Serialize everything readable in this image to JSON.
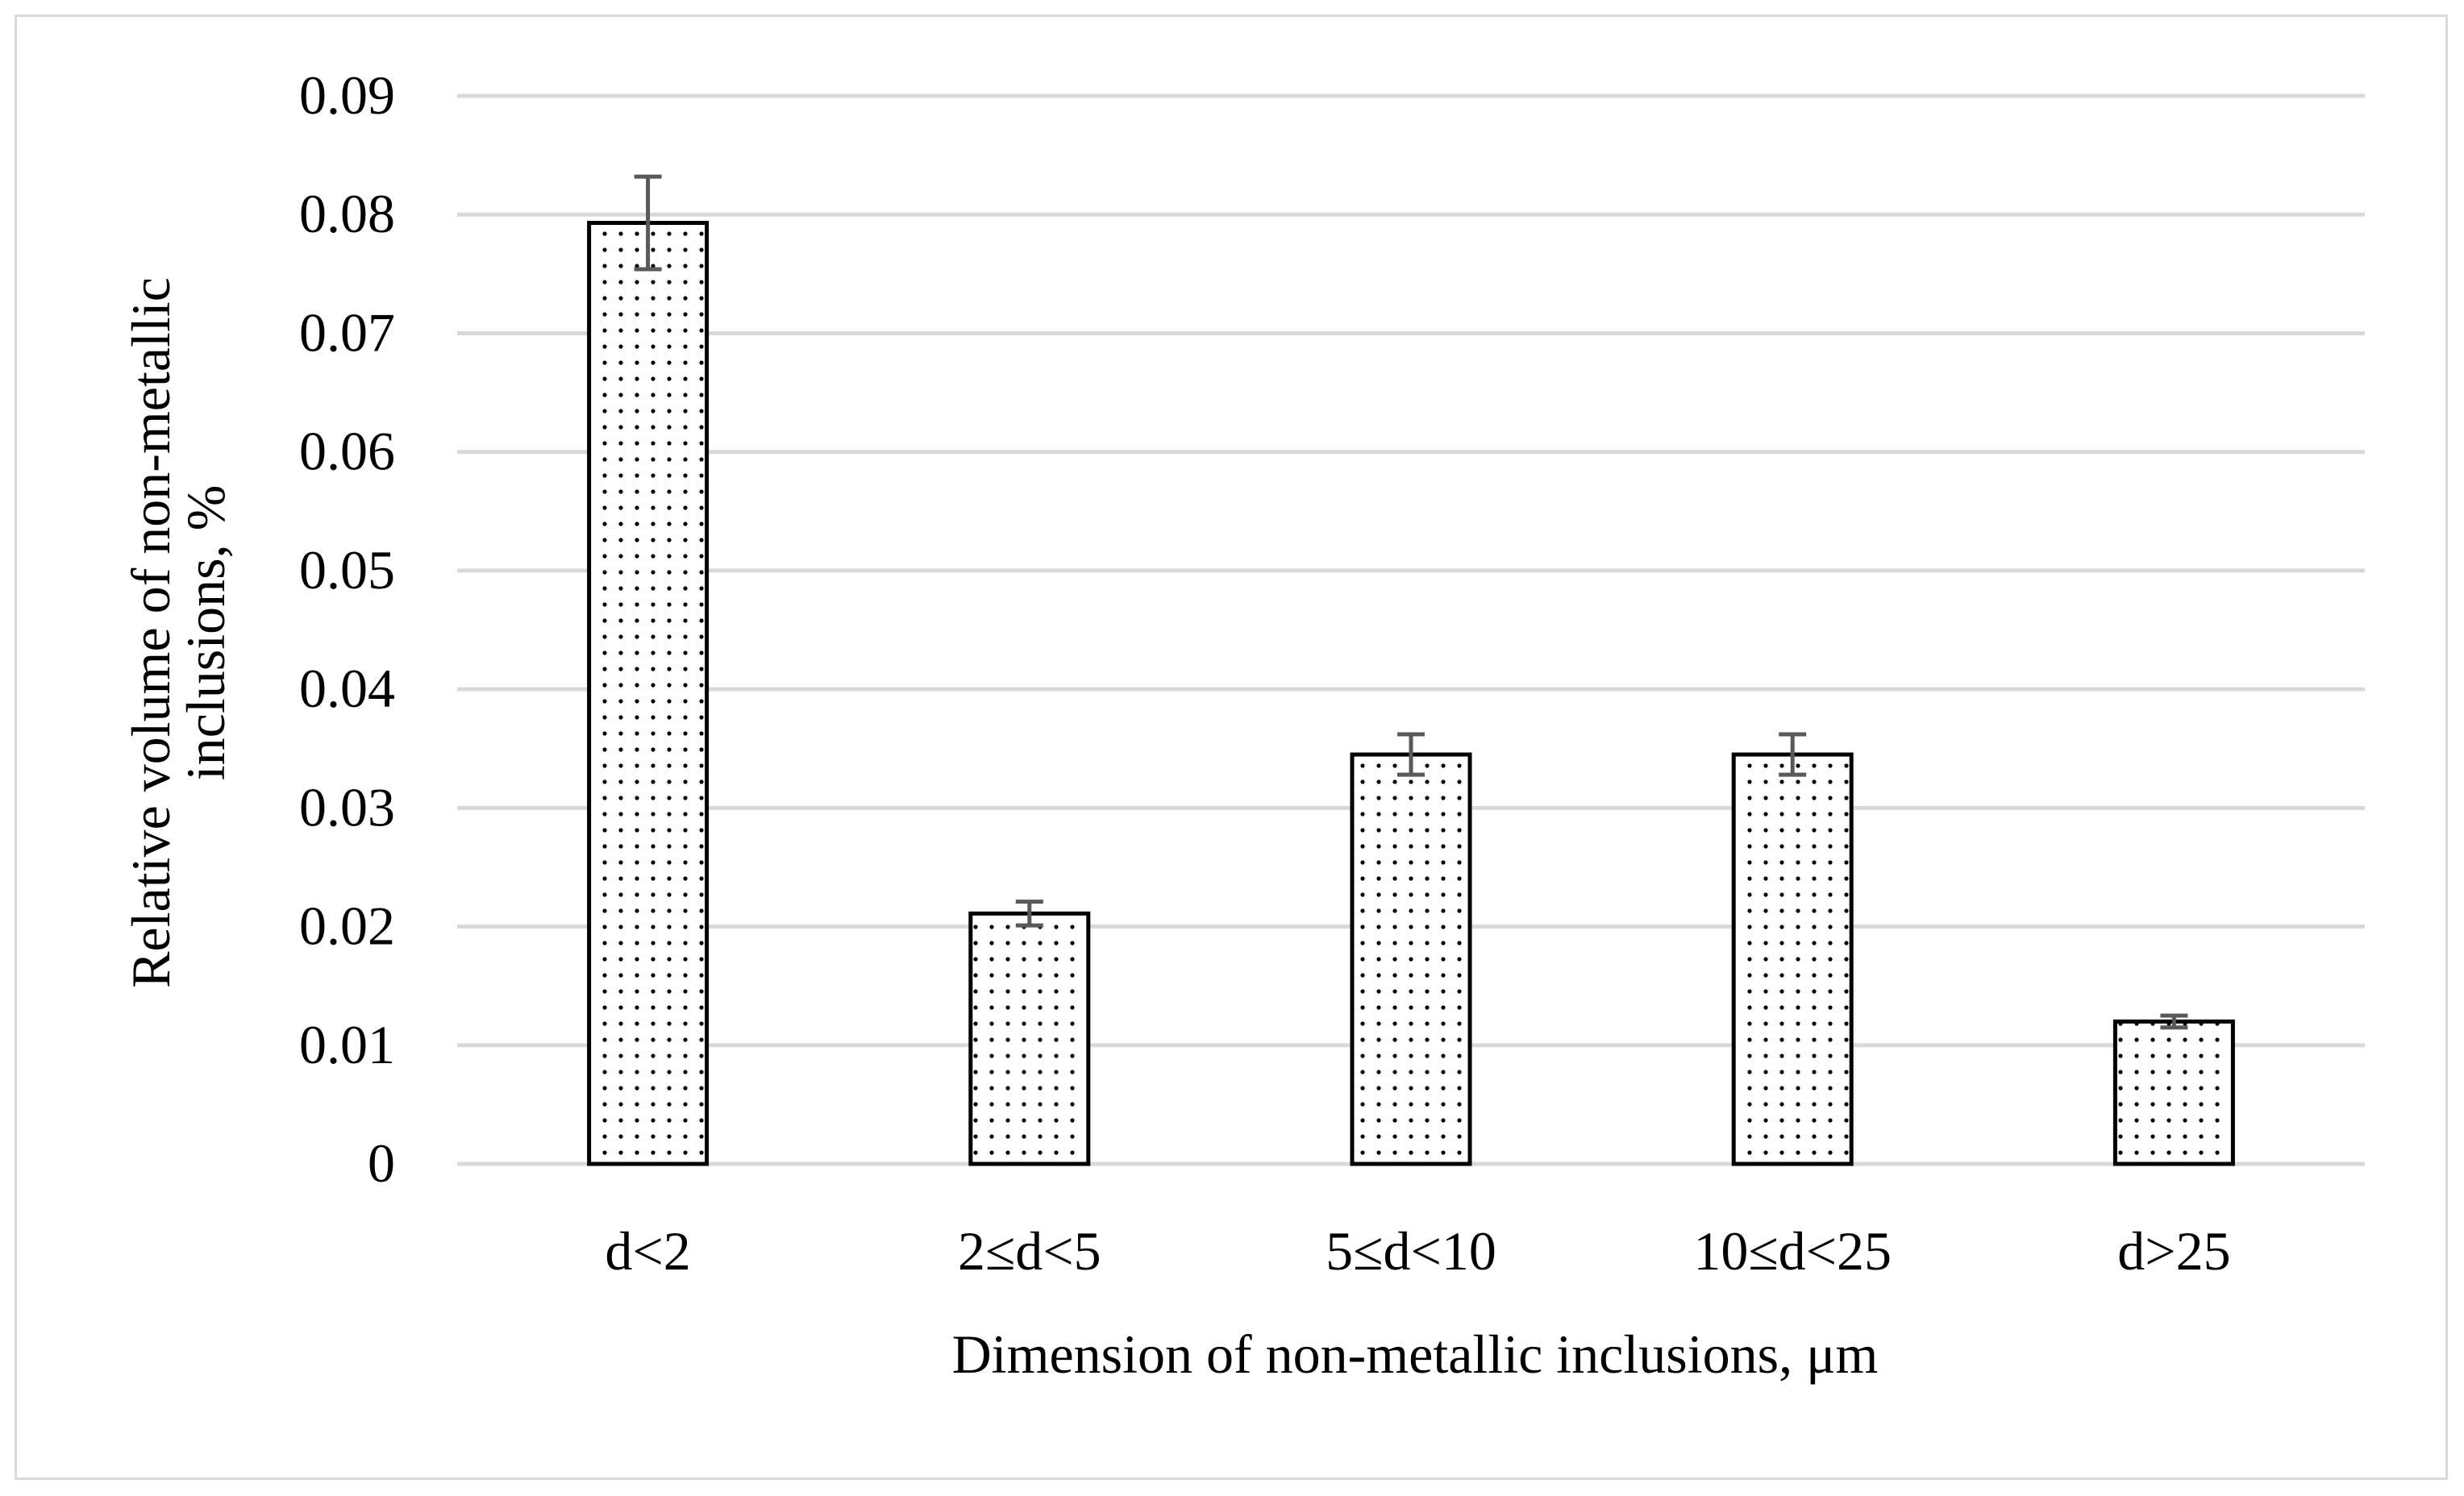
{
  "chart_data": {
    "type": "bar",
    "title": "",
    "xlabel": "Dimension of non-metallic inclusions, μm",
    "ylabel_lines": [
      "Relative volume of non-metallic",
      "inclusions, %"
    ],
    "categories": [
      "d<2",
      "2≤d<5",
      "5≤d<10",
      "10≤d<25",
      "d>25"
    ],
    "values": [
      0.0793,
      0.0211,
      0.0345,
      0.0345,
      0.012
    ],
    "error": [
      0.0039,
      0.001,
      0.0017,
      0.0017,
      0.0005
    ],
    "ylim": [
      0,
      0.09
    ],
    "yticks": [
      0,
      0.01,
      0.02,
      0.03,
      0.04,
      0.05,
      0.06,
      0.07,
      0.08,
      0.09
    ],
    "ytick_labels": [
      "0",
      "0.01",
      "0.02",
      "0.03",
      "0.04",
      "0.05",
      "0.06",
      "0.07",
      "0.08",
      "0.09"
    ],
    "grid": true,
    "legend": "none",
    "bar_fill": "dotted pattern",
    "colors": {
      "bar_edge": "#000000",
      "dots": "#000000",
      "grid": "#d9d9d9",
      "error_bar": "#595959"
    }
  }
}
